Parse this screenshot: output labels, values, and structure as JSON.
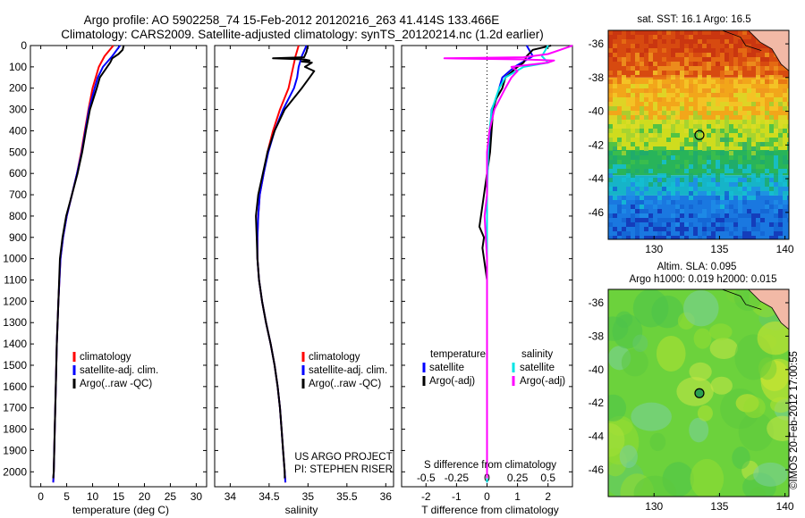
{
  "title": {
    "line1": "Argo profile: AO 5902258_74 15-Feb-2012 20120216_263 41.414S 133.466E",
    "line2": "Climatology: CARS2009. Satellite-adjusted climatology: synTS_20120214.nc (1.2d earlier)"
  },
  "colors": {
    "climatology": "#ff0000",
    "satellite": "#0000ff",
    "argo": "#000000",
    "salinity_sat": "#00e5e5",
    "salinity_argo": "#ff00ff"
  },
  "chart_data": [
    {
      "type": "line",
      "name": "temperature",
      "xlabel": "temperature (deg C)",
      "ylabel": "",
      "xlim": [
        -2,
        32
      ],
      "ylim": [
        2070,
        0
      ],
      "xticks": [
        "0",
        "5",
        "10",
        "15",
        "20",
        "25",
        "30"
      ],
      "xtick_values": [
        0,
        5,
        10,
        15,
        20,
        25,
        30
      ],
      "yticks": [
        "0",
        "100",
        "200",
        "300",
        "400",
        "500",
        "600",
        "700",
        "800",
        "900",
        "1000",
        "1100",
        "1200",
        "1300",
        "1400",
        "1500",
        "1600",
        "1700",
        "1800",
        "1900",
        "2000"
      ],
      "ytick_values": [
        0,
        100,
        200,
        300,
        400,
        500,
        600,
        700,
        800,
        900,
        1000,
        1100,
        1200,
        1300,
        1400,
        1500,
        1600,
        1700,
        1800,
        1900,
        2000
      ],
      "legend": [
        "climatology",
        "satellite-adj. clim.",
        "Argo(..raw -QC)"
      ],
      "series": [
        {
          "name": "climatology",
          "color": "#ff0000",
          "depth": [
            0,
            50,
            100,
            150,
            200,
            300,
            400,
            500,
            600,
            700,
            800,
            900,
            1000,
            1200,
            1400,
            1600,
            1800,
            2000,
            2050
          ],
          "values": [
            14,
            12.3,
            11.2,
            10.6,
            10.0,
            9.2,
            8.5,
            7.8,
            7.0,
            6.0,
            5.0,
            4.3,
            3.8,
            3.4,
            3.1,
            2.9,
            2.7,
            2.5,
            2.4
          ]
        },
        {
          "name": "satellite-adj. clim.",
          "color": "#0000ff",
          "depth": [
            0,
            50,
            100,
            150,
            200,
            300,
            400,
            500,
            600,
            700,
            800,
            900,
            1000,
            1200,
            1400,
            1600,
            1800,
            2000,
            2050
          ],
          "values": [
            15.3,
            13.8,
            12.0,
            11.0,
            10.4,
            9.3,
            8.6,
            7.9,
            7.0,
            6.0,
            5.0,
            4.3,
            3.8,
            3.4,
            3.1,
            2.9,
            2.7,
            2.5,
            2.4
          ]
        },
        {
          "name": "Argo(..raw -QC)",
          "color": "#000000",
          "depth": [
            0,
            20,
            40,
            60,
            80,
            100,
            150,
            200,
            300,
            400,
            500,
            600,
            700,
            800,
            900,
            1000,
            1200,
            1400,
            1600,
            1800,
            2000,
            2030
          ],
          "values": [
            16.0,
            15.8,
            15.0,
            13.8,
            13.4,
            12.8,
            11.4,
            10.8,
            9.5,
            8.7,
            8.0,
            7.1,
            6.0,
            4.9,
            4.2,
            3.7,
            3.4,
            3.1,
            2.9,
            2.7,
            2.5,
            2.4
          ]
        }
      ]
    },
    {
      "type": "line",
      "name": "salinity",
      "xlabel": "salinity",
      "xlim": [
        33.8,
        36.1
      ],
      "ylim": [
        2070,
        0
      ],
      "xticks": [
        "34",
        "34.5",
        "35",
        "35.5",
        "36"
      ],
      "xtick_values": [
        34,
        34.5,
        35,
        35.5,
        36
      ],
      "legend": [
        "climatology",
        "satellite-adj. clim.",
        "Argo(..raw -QC)"
      ],
      "annotation": [
        "US ARGO PROJECT",
        "PI: STEPHEN RISER"
      ],
      "series": [
        {
          "name": "climatology",
          "color": "#ff0000",
          "depth": [
            0,
            50,
            100,
            150,
            200,
            300,
            400,
            500,
            600,
            700,
            800,
            900,
            1000,
            1100,
            1200,
            1300,
            1400,
            1500,
            1600,
            1700,
            1800,
            1900,
            2000,
            2050
          ],
          "values": [
            34.88,
            34.84,
            34.81,
            34.78,
            34.75,
            34.64,
            34.55,
            34.48,
            34.43,
            34.38,
            34.36,
            34.35,
            34.35,
            34.37,
            34.41,
            34.46,
            34.52,
            34.57,
            34.61,
            34.64,
            34.66,
            34.68,
            34.7,
            34.71
          ]
        },
        {
          "name": "satellite-adj. clim.",
          "color": "#0000ff",
          "depth": [
            0,
            50,
            100,
            150,
            200,
            300,
            400,
            500,
            600,
            700,
            800,
            900,
            1000,
            1100,
            1200,
            1300,
            1400,
            1500,
            1600,
            1700,
            1800,
            1900,
            2000,
            2050
          ],
          "values": [
            34.98,
            34.92,
            34.88,
            34.86,
            34.82,
            34.68,
            34.57,
            34.49,
            34.43,
            34.38,
            34.36,
            34.35,
            34.35,
            34.37,
            34.41,
            34.46,
            34.52,
            34.57,
            34.61,
            34.64,
            34.66,
            34.68,
            34.7,
            34.71
          ]
        },
        {
          "name": "Argo(..raw -QC)",
          "color": "#000000",
          "depth": [
            0,
            30,
            55,
            60,
            65,
            70,
            75,
            80,
            100,
            120,
            150,
            200,
            300,
            400,
            500,
            600,
            700,
            800,
            900,
            1000,
            1100,
            1200,
            1300,
            1400,
            1500,
            1600,
            1700,
            1800,
            1900,
            2000,
            2030
          ],
          "values": [
            35.0,
            34.98,
            34.95,
            34.55,
            34.95,
            35.02,
            34.92,
            35.05,
            34.96,
            35.08,
            35.02,
            34.92,
            34.7,
            34.57,
            34.48,
            34.42,
            34.36,
            34.33,
            34.34,
            34.35,
            34.37,
            34.41,
            34.46,
            34.52,
            34.57,
            34.61,
            34.64,
            34.66,
            34.68,
            34.7,
            34.7
          ]
        }
      ]
    },
    {
      "type": "line",
      "name": "difference",
      "xlabel": "T difference from climatology",
      "xlabel_top": "S difference from climatology",
      "xlim": [
        -2.8,
        2.8
      ],
      "ylim": [
        2070,
        0
      ],
      "xticks": [
        "-2",
        "-1",
        "0",
        "1",
        "2"
      ],
      "xtick_values": [
        -2,
        -1,
        0,
        1,
        2
      ],
      "s_ticks": [
        "-0.5",
        "-0.25",
        "0",
        "0.25",
        "0.5"
      ],
      "legend_temperature": [
        "temperature",
        "satellite",
        "Argo(-adj)"
      ],
      "legend_salinity": [
        "salinity",
        "satellite",
        "Argo(-adj)"
      ],
      "series": [
        {
          "name": "T satellite",
          "color": "#0000ff",
          "depth": [
            0,
            50,
            100,
            150,
            200,
            250,
            300,
            400,
            500,
            600,
            700,
            800,
            900,
            1000,
            1200,
            1500,
            2000,
            2050
          ],
          "values": [
            1.3,
            1.5,
            0.9,
            0.5,
            0.4,
            0.3,
            0.15,
            0.1,
            0.05,
            0.0,
            0.0,
            0.0,
            0.0,
            0.0,
            0.0,
            0.0,
            0.0,
            0.0
          ]
        },
        {
          "name": "T Argo(-adj)",
          "color": "#000000",
          "depth": [
            0,
            20,
            50,
            80,
            100,
            150,
            200,
            250,
            300,
            400,
            500,
            600,
            700,
            750,
            800,
            850,
            900,
            950,
            1000,
            1100,
            1200,
            1500,
            2000,
            2030
          ],
          "values": [
            2.1,
            1.5,
            1.3,
            1.2,
            1.0,
            0.6,
            0.5,
            0.3,
            0.2,
            0.15,
            0.1,
            0.0,
            -0.1,
            -0.15,
            -0.2,
            -0.25,
            -0.1,
            -0.15,
            -0.1,
            0.0,
            0.0,
            0.0,
            0.0,
            0.0
          ]
        },
        {
          "name": "S satellite",
          "color": "#00e5e5",
          "depth": [
            0,
            50,
            80,
            100,
            150,
            200,
            300,
            400,
            500,
            700,
            1000,
            1500,
            2000,
            2050
          ],
          "values": [
            0.5,
            0.45,
            0.5,
            0.3,
            0.15,
            0.1,
            0.04,
            0.02,
            0.01,
            0.0,
            0.0,
            0.0,
            0.0,
            0.0
          ]
        },
        {
          "name": "S Argo(-adj)",
          "color": "#ff00ff",
          "depth": [
            0,
            20,
            40,
            55,
            60,
            65,
            70,
            80,
            100,
            120,
            150,
            200,
            300,
            400,
            500,
            600,
            700,
            800,
            900,
            1000,
            1500,
            2000,
            2030
          ],
          "values": [
            0.7,
            0.6,
            0.5,
            0.3,
            -0.35,
            0.3,
            0.55,
            0.5,
            0.2,
            0.25,
            0.2,
            0.15,
            0.06,
            0.02,
            0.0,
            0.0,
            0.0,
            -0.02,
            -0.01,
            0.0,
            0.0,
            0.0,
            0.0
          ]
        }
      ]
    },
    {
      "type": "heatmap",
      "name": "sst_map",
      "title": "sat. SST: 16.1 Argo: 16.5",
      "xlim": [
        126.5,
        140.3
      ],
      "ylim": [
        -47.6,
        -35.2
      ],
      "xticks": [
        "130",
        "135",
        "140"
      ],
      "xtick_values": [
        130,
        135,
        140
      ],
      "yticks": [
        "-36",
        "-38",
        "-40",
        "-42",
        "-44",
        "-46"
      ],
      "ytick_values": [
        -36,
        -38,
        -40,
        -42,
        -44,
        -46
      ],
      "marker": {
        "lon": 133.466,
        "lat": -41.414
      },
      "bands": [
        {
          "lat_top": -35.2,
          "lat_bottom": -38,
          "color": "#d74a10"
        },
        {
          "lat_top": -38,
          "lat_bottom": -40.5,
          "color": "#f2a61a"
        },
        {
          "lat_top": -40.5,
          "lat_bottom": -42.3,
          "color": "#cfdc1e"
        },
        {
          "lat_top": -42.3,
          "lat_bottom": -43.8,
          "color": "#28b45a"
        },
        {
          "lat_top": -43.8,
          "lat_bottom": -45,
          "color": "#16b4c8"
        },
        {
          "lat_top": -45,
          "lat_bottom": -47.6,
          "color": "#1a78e0"
        }
      ]
    },
    {
      "type": "heatmap",
      "name": "sla_map",
      "title_line1": "Altim. SLA: 0.095",
      "title_line2": "Argo h1000: 0.019 h2000: 0.015",
      "xlim": [
        126.5,
        140.3
      ],
      "ylim": [
        -47.6,
        -35.2
      ],
      "xticks": [
        "130",
        "135",
        "140"
      ],
      "xtick_values": [
        130,
        135,
        140
      ],
      "yticks": [
        "-36",
        "-38",
        "-40",
        "-42",
        "-44",
        "-46"
      ],
      "ytick_values": [
        -36,
        -38,
        -40,
        -42,
        -44,
        -46
      ],
      "marker": {
        "lon": 133.466,
        "lat": -41.414
      },
      "base_color": "#6cd23c"
    }
  ],
  "watermark": "©IMOS 20-Feb-2012 17:00:55"
}
